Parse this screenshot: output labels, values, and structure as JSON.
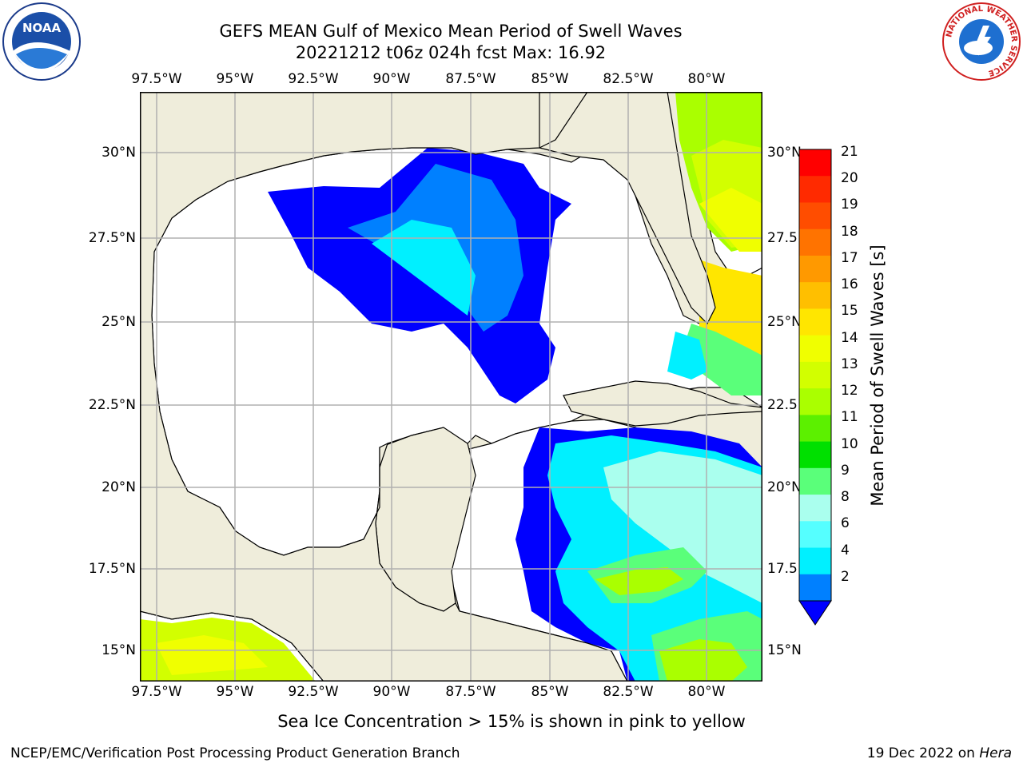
{
  "title": {
    "line1": "GEFS MEAN Gulf of Mexico Mean Period of Swell Waves",
    "line2": "20221212 t06z 024h fcst   Max: 16.92"
  },
  "axes": {
    "lon_ticks": [
      "97.5°W",
      "95°W",
      "92.5°W",
      "90°W",
      "87.5°W",
      "85°W",
      "82.5°W",
      "80°W"
    ],
    "lat_ticks_left": [
      "30°N",
      "27.5°N",
      "25°N",
      "22.5°N",
      "20°N",
      "17.5°N",
      "15°N"
    ],
    "lat_ticks_right": [
      "30°N",
      "27.5",
      "25°N",
      "22.5",
      "20°N",
      "17.5",
      "15°N"
    ]
  },
  "colorbar": {
    "title": "Mean Period of Swell Waves [s]",
    "labels": [
      "21",
      "20",
      "19",
      "18",
      "17",
      "16",
      "15",
      "14",
      "13",
      "12",
      "11",
      "10",
      "9",
      "8",
      "6",
      "4",
      "2"
    ],
    "colors": [
      "#ff0000",
      "#ff2a00",
      "#ff4d00",
      "#ff7300",
      "#ff9900",
      "#ffbf00",
      "#ffe600",
      "#f0ff00",
      "#d2ff00",
      "#aaff00",
      "#5cf000",
      "#00e000",
      "#5aff7a",
      "#aaffee",
      "#55ffff",
      "#00f0ff",
      "#0080ff",
      "#0000ff"
    ]
  },
  "map": {
    "land_color": "#efeddb",
    "ocean_color": "#ffffff",
    "grid_color": "#b0b0b0"
  },
  "note": "Sea Ice Concentration > 15% is shown in pink to yellow",
  "footer": {
    "left": "NCEP/EMC/Verification Post Processing Product Generation Branch",
    "right_date": "19 Dec 2022 on ",
    "right_machine": "Hera"
  },
  "logos": {
    "noaa_text": "NOAA",
    "nws_ring_text": "NATIONAL WEATHER SERVICE"
  }
}
